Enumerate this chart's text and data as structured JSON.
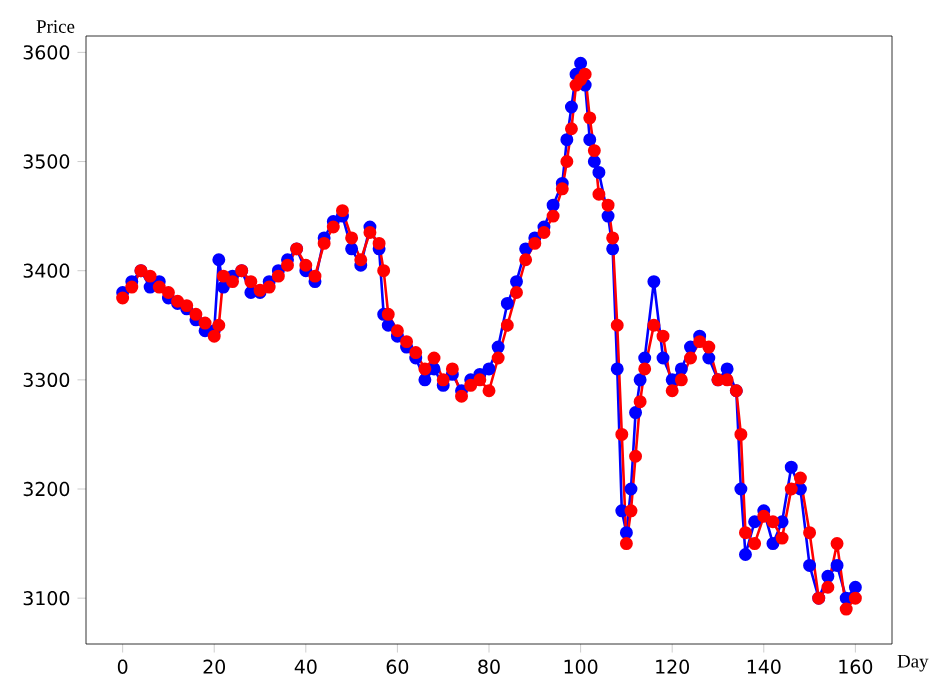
{
  "chart_data": {
    "type": "line",
    "xlabel": "Day",
    "ylabel": "Price",
    "xlim": [
      -8,
      168
    ],
    "ylim": [
      3058,
      3615
    ],
    "xticks": [
      0,
      20,
      40,
      60,
      80,
      100,
      120,
      140,
      160
    ],
    "yticks": [
      3100,
      3200,
      3300,
      3400,
      3500,
      3600
    ],
    "marker": "circle",
    "line_style": "solid",
    "series": [
      {
        "color": "#0000ff",
        "x": [
          0,
          2,
          4,
          6,
          8,
          10,
          12,
          14,
          16,
          18,
          20,
          21,
          22,
          24,
          26,
          28,
          30,
          32,
          34,
          36,
          38,
          40,
          42,
          44,
          46,
          48,
          50,
          52,
          54,
          56,
          57,
          58,
          60,
          62,
          64,
          66,
          68,
          70,
          72,
          74,
          76,
          78,
          80,
          82,
          84,
          86,
          88,
          90,
          92,
          94,
          96,
          97,
          98,
          99,
          100,
          101,
          102,
          103,
          104,
          106,
          107,
          108,
          109,
          110,
          111,
          112,
          113,
          114,
          116,
          118,
          120,
          122,
          124,
          126,
          128,
          130,
          132,
          134,
          135,
          136,
          138,
          140,
          142,
          144,
          146,
          148,
          150,
          152,
          154,
          156,
          158,
          160
        ],
        "values": [
          3380,
          3390,
          3400,
          3385,
          3390,
          3375,
          3370,
          3365,
          3355,
          3345,
          3345,
          3410,
          3385,
          3395,
          3400,
          3380,
          3380,
          3390,
          3400,
          3410,
          3420,
          3400,
          3390,
          3430,
          3445,
          3450,
          3420,
          3405,
          3440,
          3420,
          3360,
          3350,
          3340,
          3330,
          3320,
          3300,
          3310,
          3295,
          3305,
          3290,
          3300,
          3305,
          3310,
          3330,
          3370,
          3390,
          3420,
          3430,
          3440,
          3460,
          3480,
          3520,
          3550,
          3580,
          3590,
          3570,
          3520,
          3500,
          3490,
          3450,
          3420,
          3310,
          3180,
          3160,
          3200,
          3270,
          3300,
          3320,
          3390,
          3320,
          3300,
          3310,
          3330,
          3340,
          3320,
          3300,
          3310,
          3290,
          3200,
          3140,
          3170,
          3180,
          3150,
          3170,
          3220,
          3200,
          3130,
          3100,
          3120,
          3130,
          3100,
          3110
        ]
      },
      {
        "color": "#ff0000",
        "x": [
          0,
          2,
          4,
          6,
          8,
          10,
          12,
          14,
          16,
          18,
          20,
          21,
          22,
          24,
          26,
          28,
          30,
          32,
          34,
          36,
          38,
          40,
          42,
          44,
          46,
          48,
          50,
          52,
          54,
          56,
          57,
          58,
          60,
          62,
          64,
          66,
          68,
          70,
          72,
          74,
          76,
          78,
          80,
          82,
          84,
          86,
          88,
          90,
          92,
          94,
          96,
          97,
          98,
          99,
          100,
          101,
          102,
          103,
          104,
          106,
          107,
          108,
          109,
          110,
          111,
          112,
          113,
          114,
          116,
          118,
          120,
          122,
          124,
          126,
          128,
          130,
          132,
          134,
          135,
          136,
          138,
          140,
          142,
          144,
          146,
          148,
          150,
          152,
          154,
          156,
          158,
          160
        ],
        "values": [
          3375,
          3385,
          3400,
          3395,
          3385,
          3380,
          3372,
          3368,
          3360,
          3352,
          3340,
          3350,
          3395,
          3390,
          3400,
          3390,
          3382,
          3385,
          3395,
          3405,
          3420,
          3405,
          3395,
          3425,
          3440,
          3455,
          3430,
          3410,
          3435,
          3425,
          3400,
          3360,
          3345,
          3335,
          3325,
          3310,
          3320,
          3300,
          3310,
          3285,
          3295,
          3300,
          3290,
          3320,
          3350,
          3380,
          3410,
          3425,
          3435,
          3450,
          3475,
          3500,
          3530,
          3570,
          3575,
          3580,
          3540,
          3510,
          3470,
          3460,
          3430,
          3350,
          3250,
          3150,
          3180,
          3230,
          3280,
          3310,
          3350,
          3340,
          3290,
          3300,
          3320,
          3335,
          3330,
          3300,
          3300,
          3290,
          3250,
          3160,
          3150,
          3175,
          3170,
          3155,
          3200,
          3210,
          3160,
          3100,
          3110,
          3150,
          3090,
          3100
        ]
      }
    ]
  }
}
